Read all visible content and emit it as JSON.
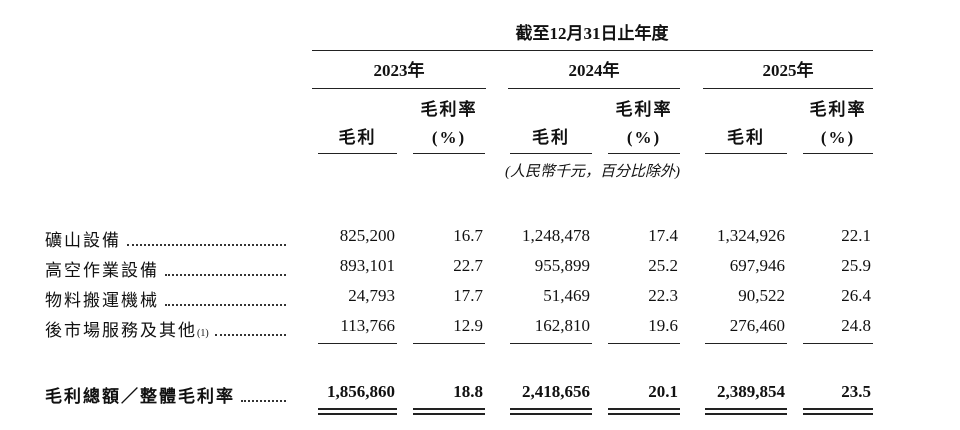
{
  "header": {
    "period": "截至12月31日止年度",
    "years": [
      "2023年",
      "2024年",
      "2025年"
    ],
    "column_headers": [
      [
        "毛利"
      ],
      [
        "毛利率",
        "(%)"
      ],
      [
        "毛利"
      ],
      [
        "毛利率",
        "(%)"
      ],
      [
        "毛利"
      ],
      [
        "毛利率",
        "(%)"
      ]
    ],
    "unit_note": "(人民幣千元，百分比除外)"
  },
  "table": {
    "rows": [
      {
        "label": "礦山設備",
        "values": [
          "825,200",
          "16.7",
          "1,248,478",
          "17.4",
          "1,324,926",
          "22.1"
        ]
      },
      {
        "label": "高空作業設備",
        "values": [
          "893,101",
          "22.7",
          "955,899",
          "25.2",
          "697,946",
          "25.9"
        ]
      },
      {
        "label": "物料搬運機械",
        "values": [
          "24,793",
          "17.7",
          "51,469",
          "22.3",
          "90,522",
          "26.4"
        ]
      },
      {
        "label": "後市場服務及其他",
        "note": "(1)",
        "values": [
          "113,766",
          "12.9",
          "162,810",
          "19.6",
          "276,460",
          "24.8"
        ]
      }
    ],
    "total": {
      "label": "毛利總額／整體毛利率",
      "values": [
        "1,856,860",
        "18.8",
        "2,418,656",
        "20.1",
        "2,389,854",
        "23.5"
      ]
    }
  }
}
